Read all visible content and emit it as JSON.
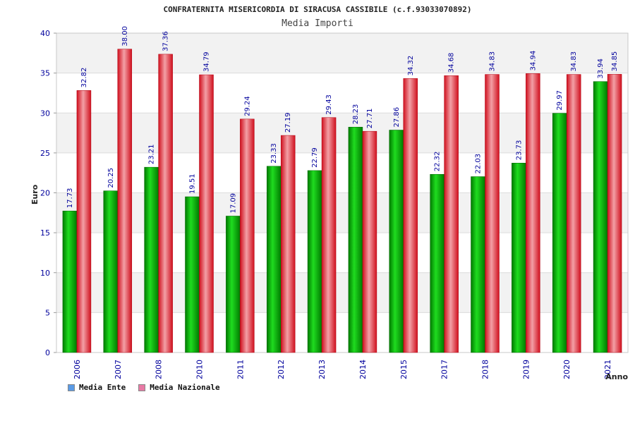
{
  "chart_data": {
    "type": "bar",
    "title": "CONFRATERNITA MISERICORDIA DI SIRACUSA CASSIBILE (c.f.93033070892)",
    "subtitle": "Media Importi",
    "xlabel": "Anno",
    "ylabel": "Euro",
    "ylim": [
      0,
      40
    ],
    "yticks": [
      0,
      5,
      10,
      15,
      20,
      25,
      30,
      35,
      40
    ],
    "categories": [
      "2006",
      "2007",
      "2008",
      "2010",
      "2011",
      "2012",
      "2013",
      "2014",
      "2015",
      "2017",
      "2018",
      "2019",
      "2020",
      "2021"
    ],
    "series": [
      {
        "name": "Media Ente",
        "color": "#00aa00",
        "legend_color": "#5a9be6",
        "values": [
          17.73,
          20.25,
          23.21,
          19.51,
          17.09,
          23.33,
          22.79,
          28.23,
          27.86,
          22.32,
          22.03,
          23.73,
          29.97,
          33.94
        ]
      },
      {
        "name": "Media Nazionale",
        "color": "#ee1c2e",
        "legend_color": "#e87aa5",
        "values": [
          32.82,
          38.0,
          37.36,
          34.79,
          29.24,
          27.19,
          29.43,
          27.71,
          34.32,
          34.68,
          34.83,
          34.94,
          34.83,
          34.85
        ]
      }
    ],
    "data_labels": [
      [
        "17.73",
        "20.25",
        "23.21",
        "19.51",
        "17.09",
        "23.33",
        "22.79",
        "28.23",
        "27.86",
        "22.32",
        "22.03",
        "23.73",
        "29.97",
        "33.94"
      ],
      [
        "32.82",
        "38.00",
        "37.36",
        "34.79",
        "29.24",
        "27.19",
        "29.43",
        "27.71",
        "34.32",
        "34.68",
        "34.83",
        "34.94",
        "34.83",
        "34.85"
      ]
    ],
    "legend": "bottom-left",
    "grid": true
  }
}
